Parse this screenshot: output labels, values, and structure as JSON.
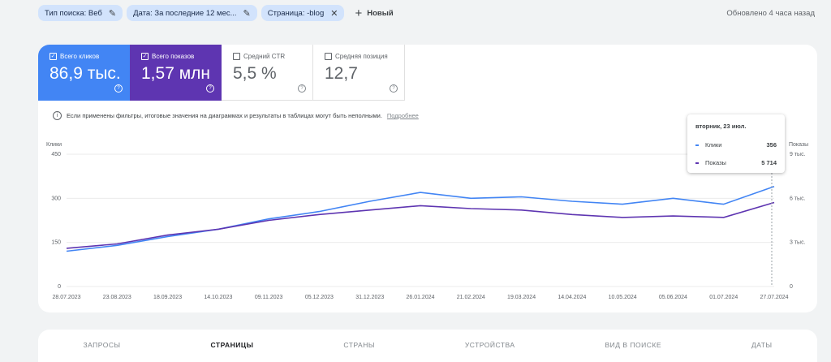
{
  "filters": {
    "chips": [
      {
        "label": "Тип поиска: Веб"
      },
      {
        "label": "Дата: За последние 12 мес..."
      },
      {
        "label": "Страница: -blog"
      }
    ],
    "new_label": "Новый",
    "updated": "Обновлено 4 часа назад"
  },
  "metrics": [
    {
      "label": "Всего кликов",
      "value": "86,9 тыс.",
      "checked": true,
      "color": "#4285f4"
    },
    {
      "label": "Всего показов",
      "value": "1,57 млн",
      "checked": true,
      "color": "#5e35b1"
    },
    {
      "label": "Средний CTR",
      "value": "5,5 %",
      "checked": false
    },
    {
      "label": "Средняя позиция",
      "value": "12,7",
      "checked": false
    }
  ],
  "notice": {
    "text": "Если применены фильтры, итоговые значения на диаграммах и результаты в таблицах могут быть неполными.",
    "link": "Подробнее"
  },
  "tooltip": {
    "date": "вторник, 23 июл.",
    "rows": [
      {
        "name": "Клики",
        "value": "356",
        "color": "#4285f4"
      },
      {
        "name": "Показы",
        "value": "5 714",
        "color": "#5e35b1"
      }
    ]
  },
  "chart_data": {
    "type": "line",
    "left_axis_title": "Клики",
    "right_axis_title": "Показы",
    "left_ticks": [
      "450",
      "300",
      "150",
      "0"
    ],
    "right_ticks": [
      "9 тыс.",
      "6 тыс.",
      "3 тыс.",
      "0"
    ],
    "ylim_left": [
      0,
      450
    ],
    "ylim_right": [
      0,
      9000
    ],
    "x_labels": [
      "28.07.2023",
      "23.08.2023",
      "18.09.2023",
      "14.10.2023",
      "09.11.2023",
      "05.12.2023",
      "31.12.2023",
      "26.01.2024",
      "21.02.2024",
      "19.03.2024",
      "14.04.2024",
      "10.05.2024",
      "05.06.2024",
      "01.07.2024",
      "27.07.2024"
    ],
    "series": [
      {
        "name": "Клики",
        "color": "#4285f4",
        "values": [
          120,
          140,
          170,
          195,
          230,
          255,
          290,
          320,
          300,
          305,
          290,
          280,
          300,
          280,
          340
        ]
      },
      {
        "name": "Показы",
        "color": "#5e35b1",
        "values": [
          2600,
          2900,
          3500,
          3900,
          4500,
          4900,
          5200,
          5500,
          5300,
          5200,
          4900,
          4700,
          4800,
          4700,
          5714
        ]
      }
    ],
    "grid": true
  },
  "tabs": [
    "ЗАПРОСЫ",
    "СТРАНИЦЫ",
    "СТРАНЫ",
    "УСТРОЙСТВА",
    "ВИД В ПОИСКЕ",
    "ДАТЫ"
  ],
  "active_tab": 1
}
